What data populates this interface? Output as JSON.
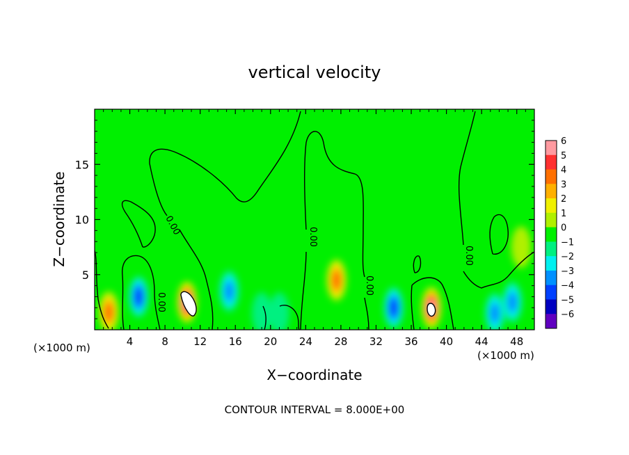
{
  "chart_data": {
    "type": "heatmap",
    "title": "vertical velocity",
    "xlabel": "X−coordinate",
    "ylabel": "Z−coordinate",
    "x_unit_left": "(×1000 m)",
    "x_unit_right": "(×1000 m)",
    "xlim": [
      0,
      50
    ],
    "ylim": [
      0,
      20
    ],
    "x_ticks": [
      4,
      8,
      12,
      16,
      20,
      24,
      28,
      32,
      36,
      40,
      44,
      48
    ],
    "x_tick_labels": [
      "4",
      "8",
      "12",
      "16",
      "20",
      "24",
      "28",
      "32",
      "36",
      "40",
      "44",
      "48"
    ],
    "y_ticks": [
      5,
      10,
      15
    ],
    "y_tick_labels": [
      "5",
      "10",
      "15"
    ],
    "colorbar": {
      "levels": [
        6,
        5,
        4,
        3,
        2,
        1,
        0,
        -1,
        -2,
        -3,
        -4,
        -5,
        -6
      ],
      "labels": [
        "6",
        "5",
        "4",
        "3",
        "2",
        "1",
        "0",
        "−1",
        "−2",
        "−3",
        "−4",
        "−5",
        "−6"
      ],
      "colors": [
        "#ff9aa0",
        "#ff3030",
        "#ff7000",
        "#ffb000",
        "#f0f000",
        "#b0f000",
        "#00f000",
        "#00f080",
        "#00f0f0",
        "#0090ff",
        "#0040ff",
        "#0000c0",
        "#6000c0"
      ]
    },
    "contour_label": "0.00",
    "background_value": 0,
    "cells": [
      {
        "x": 10.5,
        "z": 2.5,
        "value": 6
      },
      {
        "x": 38.3,
        "z": 2.0,
        "value": 6
      },
      {
        "x": 27.5,
        "z": 4.5,
        "value": 4
      },
      {
        "x": 1.6,
        "z": 1.6,
        "value": 4
      },
      {
        "x": 5.0,
        "z": 3.0,
        "value": -4
      },
      {
        "x": 15.3,
        "z": 3.5,
        "value": -3
      },
      {
        "x": 34.0,
        "z": 2.0,
        "value": -4
      },
      {
        "x": 45.5,
        "z": 1.5,
        "value": -3
      },
      {
        "x": 47.5,
        "z": 2.5,
        "value": -3
      },
      {
        "x": 48.5,
        "z": 7.5,
        "value": 1
      },
      {
        "x": 19.0,
        "z": 1.5,
        "value": -1
      },
      {
        "x": 21.0,
        "z": 1.5,
        "value": -1
      }
    ],
    "footer": "CONTOUR INTERVAL = 8.000E+00"
  }
}
